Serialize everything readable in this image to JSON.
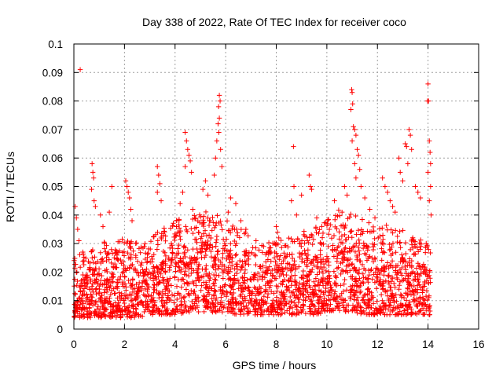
{
  "chart_data": {
    "type": "scatter",
    "title": "Day 338 of 2022, Rate Of TEC Index for receiver coco",
    "xlabel": "GPS time / hours",
    "ylabel": "ROTI / TECUs",
    "xlim": [
      0,
      16
    ],
    "ylim": [
      0,
      0.1
    ],
    "x_ticks": [
      "0",
      "2",
      "4",
      "6",
      "8",
      "10",
      "12",
      "14",
      "16"
    ],
    "y_ticks": [
      "0",
      "0.01",
      "0.02",
      "0.03",
      "0.04",
      "0.05",
      "0.06",
      "0.07",
      "0.08",
      "0.09",
      "0.1"
    ],
    "grid": true,
    "marker": "+",
    "series": [
      {
        "name": "ROTI",
        "color": "#ff0000",
        "points": [
          [
            0.25,
            0.091
          ],
          [
            0.05,
            0.043
          ],
          [
            0.1,
            0.039
          ],
          [
            0.15,
            0.035
          ],
          [
            0.2,
            0.031
          ],
          [
            0.72,
            0.058
          ],
          [
            0.75,
            0.055
          ],
          [
            0.78,
            0.053
          ],
          [
            0.7,
            0.049
          ],
          [
            0.8,
            0.045
          ],
          [
            0.85,
            0.043
          ],
          [
            1.05,
            0.04
          ],
          [
            1.15,
            0.036
          ],
          [
            1.5,
            0.05
          ],
          [
            1.4,
            0.041
          ],
          [
            2.05,
            0.052
          ],
          [
            2.1,
            0.05
          ],
          [
            2.15,
            0.048
          ],
          [
            2.2,
            0.046
          ],
          [
            2.25,
            0.042
          ],
          [
            2.3,
            0.038
          ],
          [
            3.3,
            0.057
          ],
          [
            3.35,
            0.054
          ],
          [
            3.4,
            0.051
          ],
          [
            3.3,
            0.048
          ],
          [
            3.45,
            0.045
          ],
          [
            4.4,
            0.069
          ],
          [
            4.45,
            0.066
          ],
          [
            4.5,
            0.063
          ],
          [
            4.55,
            0.061
          ],
          [
            4.6,
            0.059
          ],
          [
            4.4,
            0.057
          ],
          [
            4.65,
            0.055
          ],
          [
            4.3,
            0.048
          ],
          [
            4.2,
            0.044
          ],
          [
            4.7,
            0.042
          ],
          [
            5.2,
            0.052
          ],
          [
            5.1,
            0.049
          ],
          [
            5.3,
            0.047
          ],
          [
            5.75,
            0.082
          ],
          [
            5.78,
            0.08
          ],
          [
            5.72,
            0.078
          ],
          [
            5.75,
            0.074
          ],
          [
            5.7,
            0.072
          ],
          [
            5.73,
            0.069
          ],
          [
            5.65,
            0.066
          ],
          [
            5.8,
            0.063
          ],
          [
            5.6,
            0.06
          ],
          [
            5.85,
            0.057
          ],
          [
            5.55,
            0.054
          ],
          [
            6.2,
            0.046
          ],
          [
            6.4,
            0.044
          ],
          [
            6.1,
            0.041
          ],
          [
            6.6,
            0.038
          ],
          [
            6.8,
            0.035
          ],
          [
            7.2,
            0.031
          ],
          [
            7.5,
            0.029
          ],
          [
            7.8,
            0.027
          ],
          [
            8.0,
            0.036
          ],
          [
            8.05,
            0.034
          ],
          [
            8.1,
            0.032
          ],
          [
            8.68,
            0.064
          ],
          [
            8.7,
            0.05
          ],
          [
            8.6,
            0.045
          ],
          [
            8.8,
            0.04
          ],
          [
            9.0,
            0.047
          ],
          [
            9.3,
            0.054
          ],
          [
            9.35,
            0.05
          ],
          [
            9.4,
            0.049
          ],
          [
            9.6,
            0.039
          ],
          [
            9.8,
            0.036
          ],
          [
            10.3,
            0.045
          ],
          [
            10.6,
            0.041
          ],
          [
            10.7,
            0.05
          ],
          [
            10.8,
            0.047
          ],
          [
            10.98,
            0.084
          ],
          [
            11.0,
            0.083
          ],
          [
            11.02,
            0.079
          ],
          [
            10.95,
            0.077
          ],
          [
            11.05,
            0.071
          ],
          [
            11.1,
            0.07
          ],
          [
            11.15,
            0.068
          ],
          [
            11.0,
            0.066
          ],
          [
            11.2,
            0.063
          ],
          [
            11.25,
            0.061
          ],
          [
            11.1,
            0.058
          ],
          [
            11.3,
            0.056
          ],
          [
            11.15,
            0.053
          ],
          [
            11.35,
            0.05
          ],
          [
            11.5,
            0.046
          ],
          [
            11.7,
            0.042
          ],
          [
            11.9,
            0.039
          ],
          [
            12.2,
            0.053
          ],
          [
            12.3,
            0.05
          ],
          [
            12.4,
            0.048
          ],
          [
            12.5,
            0.045
          ],
          [
            12.6,
            0.043
          ],
          [
            12.7,
            0.041
          ],
          [
            12.85,
            0.06
          ],
          [
            12.9,
            0.055
          ],
          [
            13.0,
            0.052
          ],
          [
            13.1,
            0.065
          ],
          [
            13.15,
            0.064
          ],
          [
            13.25,
            0.07
          ],
          [
            13.3,
            0.068
          ],
          [
            13.35,
            0.063
          ],
          [
            13.2,
            0.058
          ],
          [
            13.5,
            0.05
          ],
          [
            13.6,
            0.048
          ],
          [
            13.7,
            0.046
          ],
          [
            14.0,
            0.086
          ],
          [
            13.98,
            0.08
          ],
          [
            14.02,
            0.08
          ],
          [
            14.05,
            0.066
          ],
          [
            14.08,
            0.062
          ],
          [
            14.1,
            0.058
          ],
          [
            14.0,
            0.055
          ],
          [
            14.1,
            0.05
          ],
          [
            14.05,
            0.045
          ],
          [
            14.12,
            0.04
          ]
        ],
        "band": {
          "x_range": [
            0,
            14.1
          ],
          "profile": [
            [
              0.0,
              0.004,
              0.018,
              0.027
            ],
            [
              0.5,
              0.004,
              0.019,
              0.029
            ],
            [
              1.0,
              0.004,
              0.021,
              0.031
            ],
            [
              1.5,
              0.004,
              0.02,
              0.03
            ],
            [
              2.0,
              0.004,
              0.022,
              0.032
            ],
            [
              2.5,
              0.004,
              0.021,
              0.031
            ],
            [
              3.0,
              0.005,
              0.022,
              0.033
            ],
            [
              3.5,
              0.005,
              0.024,
              0.035
            ],
            [
              4.0,
              0.005,
              0.026,
              0.038
            ],
            [
              4.5,
              0.006,
              0.028,
              0.04
            ],
            [
              5.0,
              0.006,
              0.03,
              0.042
            ],
            [
              5.5,
              0.006,
              0.029,
              0.041
            ],
            [
              6.0,
              0.006,
              0.027,
              0.039
            ],
            [
              6.5,
              0.005,
              0.025,
              0.036
            ],
            [
              7.0,
              0.005,
              0.023,
              0.033
            ],
            [
              7.5,
              0.005,
              0.022,
              0.03
            ],
            [
              8.0,
              0.005,
              0.022,
              0.031
            ],
            [
              8.5,
              0.005,
              0.023,
              0.032
            ],
            [
              9.0,
              0.005,
              0.024,
              0.034
            ],
            [
              9.5,
              0.005,
              0.026,
              0.036
            ],
            [
              10.0,
              0.006,
              0.027,
              0.038
            ],
            [
              10.5,
              0.006,
              0.03,
              0.042
            ],
            [
              11.0,
              0.006,
              0.029,
              0.041
            ],
            [
              11.5,
              0.005,
              0.027,
              0.038
            ],
            [
              12.0,
              0.005,
              0.026,
              0.036
            ],
            [
              12.5,
              0.005,
              0.026,
              0.037
            ],
            [
              13.0,
              0.005,
              0.025,
              0.035
            ],
            [
              13.5,
              0.005,
              0.023,
              0.032
            ],
            [
              14.0,
              0.005,
              0.022,
              0.031
            ],
            [
              14.1,
              0.005,
              0.02,
              0.028
            ]
          ],
          "count": 2600
        }
      }
    ]
  }
}
